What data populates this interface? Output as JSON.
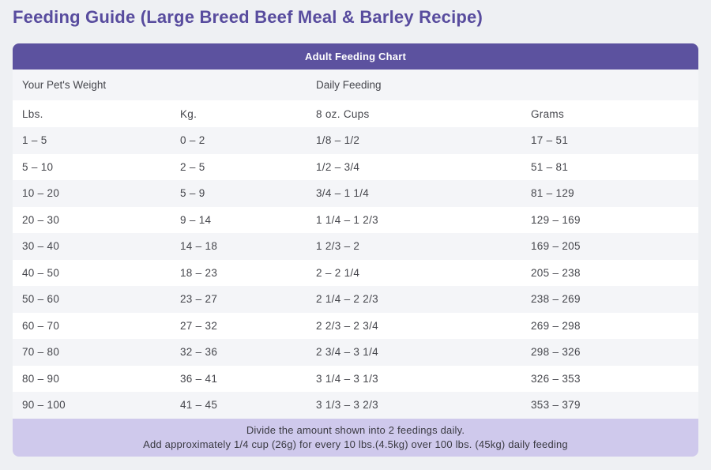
{
  "page": {
    "title": "Feeding Guide (Large Breed Beef Meal & Barley Recipe)"
  },
  "chart_data": {
    "type": "table",
    "title": "Adult Feeding Chart",
    "group_headers": {
      "weight": "Your Pet's Weight",
      "feeding": "Daily Feeding"
    },
    "columns": [
      "Lbs.",
      "Kg.",
      "8 oz. Cups",
      "Grams"
    ],
    "rows": [
      [
        "1 – 5",
        "0 – 2",
        "1/8 – 1/2",
        "17 – 51"
      ],
      [
        "5 – 10",
        "2 – 5",
        "1/2 – 3/4",
        "51 – 81"
      ],
      [
        "10 – 20",
        "5 – 9",
        "3/4 – 1 1/4",
        "81 – 129"
      ],
      [
        "20 – 30",
        "9 – 14",
        "1 1/4 – 1 2/3",
        "129 – 169"
      ],
      [
        "30 – 40",
        "14 – 18",
        "1 2/3 – 2",
        "169 – 205"
      ],
      [
        "40 – 50",
        "18 – 23",
        "2 – 2 1/4",
        "205 – 238"
      ],
      [
        "50 – 60",
        "23 – 27",
        "2 1/4 – 2 2/3",
        "238 – 269"
      ],
      [
        "60 – 70",
        "27 – 32",
        "2 2/3 – 2 3/4",
        "269 – 298"
      ],
      [
        "70 – 80",
        "32 – 36",
        "2 3/4 – 3 1/4",
        "298 – 326"
      ],
      [
        "80 – 90",
        "36 – 41",
        "3 1/4 – 3 1/3",
        "326 – 353"
      ],
      [
        "90 – 100",
        "41 – 45",
        "3 1/3 – 3 2/3",
        "353 – 379"
      ]
    ],
    "footer": {
      "line1": "Divide the amount shown into 2 feedings daily.",
      "line2": "Add approximately 1/4 cup (26g) for every 10 lbs.(4.5kg) over 100 lbs. (45kg) daily feeding"
    },
    "layout_hints": {
      "row_striping": true,
      "stripe_starts_on_first_row": true
    }
  },
  "colors": {
    "page_bg": "#eef0f3",
    "title": "#584c9e",
    "header_bg": "#5c529f",
    "header_text": "#ffffff",
    "stripe_bg": "#f4f5f8",
    "footer_bg": "#cfc9ec",
    "text": "#45464c"
  }
}
